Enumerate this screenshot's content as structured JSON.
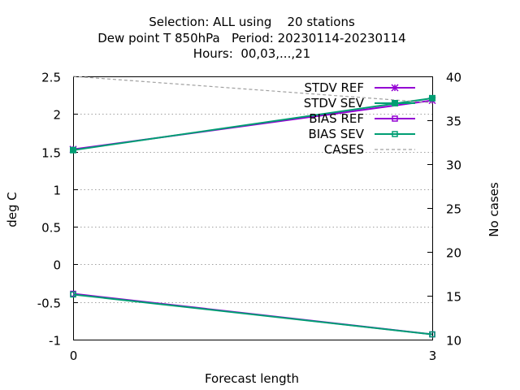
{
  "chart_data": {
    "type": "line",
    "title_lines": [
      "Selection: ALL using    20 stations",
      "Dew point T 850hPa   Period: 20230114-20230114",
      "Hours:  00,03,...,21"
    ],
    "xlabel": "Forecast length",
    "ylabel": "deg C",
    "y2label": "No cases",
    "x": [
      0,
      3
    ],
    "xticks": [
      "0",
      "3"
    ],
    "xlim": [
      0,
      3
    ],
    "ylim": [
      -1,
      2.5
    ],
    "yticks": [
      "-1",
      "-0.5",
      "0",
      "0.5",
      "1",
      "1.5",
      "2",
      "2.5"
    ],
    "y2lim": [
      10,
      40
    ],
    "y2ticks": [
      "10",
      "15",
      "20",
      "25",
      "30",
      "35",
      "40"
    ],
    "grid": "horizontal dotted",
    "legend_position": "top-right",
    "series": [
      {
        "name": "STDV REF",
        "axis": "left",
        "values": [
          1.53,
          2.18
        ],
        "color": "#9400d3",
        "marker": "star"
      },
      {
        "name": "STDV SEV",
        "axis": "left",
        "values": [
          1.52,
          2.21
        ],
        "color": "#009e73",
        "marker": "filled-square"
      },
      {
        "name": "BIAS REF",
        "axis": "left",
        "values": [
          -0.39,
          -0.93
        ],
        "color": "#9400d3",
        "marker": "open-square"
      },
      {
        "name": "BIAS SEV",
        "axis": "left",
        "values": [
          -0.4,
          -0.93
        ],
        "color": "#009e73",
        "marker": "open-square"
      },
      {
        "name": "CASES",
        "axis": "right",
        "values": [
          40,
          37
        ],
        "color": "#a0a0a0",
        "marker": "none"
      }
    ]
  }
}
